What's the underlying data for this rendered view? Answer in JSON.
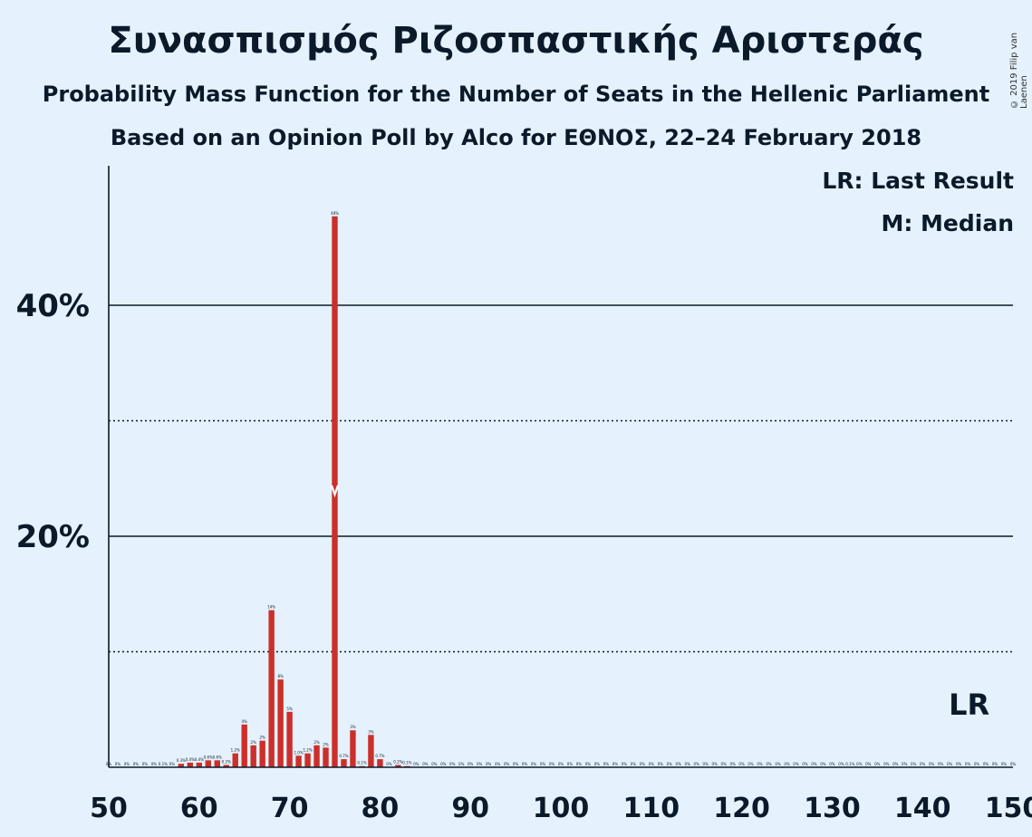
{
  "header": {
    "title": "Συνασπισμός Ριζοσπαστικής Αριστεράς",
    "subtitle1": "Probability Mass Function for the Number of Seats in the Hellenic Parliament",
    "subtitle2": "Based on an Opinion Poll by Alco for ΕΘΝΟΣ, 22–24 February 2018",
    "copyright": "© 2019 Filip van Laenen"
  },
  "legend": {
    "last_result": "LR: Last Result",
    "median": "M: Median"
  },
  "colors": {
    "background": "#e5f1fc",
    "bar": "#cc2f2a",
    "text": "#0b1a2a"
  },
  "chart_data": {
    "type": "bar",
    "title": "Συνασπισμός Ριζοσπαστικής Αριστεράς",
    "xlabel": "",
    "ylabel": "",
    "xlim": [
      50,
      150
    ],
    "ylim": [
      0,
      52
    ],
    "x_ticks": [
      50,
      60,
      70,
      80,
      90,
      100,
      110,
      120,
      130,
      140,
      150
    ],
    "y_ticks": [
      {
        "value": 20,
        "label": "20%",
        "style": "solid"
      },
      {
        "value": 40,
        "label": "40%",
        "style": "solid"
      }
    ],
    "y_minor_gridlines": [
      10,
      30
    ],
    "median": 75,
    "last_result": 145,
    "last_result_label": "LR",
    "bars": [
      {
        "x": 58,
        "value": 0.3,
        "label": "0.3%"
      },
      {
        "x": 59,
        "value": 0.4,
        "label": "0.4%"
      },
      {
        "x": 60,
        "value": 0.4,
        "label": "0.4%"
      },
      {
        "x": 61,
        "value": 0.6,
        "label": "0.6%"
      },
      {
        "x": 62,
        "value": 0.6,
        "label": "0.6%"
      },
      {
        "x": 63,
        "value": 0.2,
        "label": "0.2%"
      },
      {
        "x": 64,
        "value": 1.2,
        "label": "1.2%"
      },
      {
        "x": 65,
        "value": 3.7,
        "label": "4%"
      },
      {
        "x": 66,
        "value": 1.9,
        "label": "2%"
      },
      {
        "x": 67,
        "value": 2.3,
        "label": "2%"
      },
      {
        "x": 68,
        "value": 13.6,
        "label": "14%"
      },
      {
        "x": 69,
        "value": 7.6,
        "label": "8%"
      },
      {
        "x": 70,
        "value": 4.8,
        "label": "5%"
      },
      {
        "x": 71,
        "value": 1.0,
        "label": "1.0%"
      },
      {
        "x": 72,
        "value": 1.2,
        "label": "1.2%"
      },
      {
        "x": 73,
        "value": 1.9,
        "label": "2%"
      },
      {
        "x": 74,
        "value": 1.7,
        "label": "2%"
      },
      {
        "x": 75,
        "value": 47.7,
        "label": "48%"
      },
      {
        "x": 76,
        "value": 0.7,
        "label": "0.7%"
      },
      {
        "x": 77,
        "value": 3.2,
        "label": "3%"
      },
      {
        "x": 78,
        "value": 0.1,
        "label": "0.1%"
      },
      {
        "x": 79,
        "value": 2.8,
        "label": "3%"
      },
      {
        "x": 80,
        "value": 0.7,
        "label": "0.7%"
      },
      {
        "x": 82,
        "value": 0.2,
        "label": "0.2%"
      },
      {
        "x": 83,
        "value": 0.1,
        "label": "0.1%"
      }
    ],
    "zero_labels": [
      {
        "x": 50,
        "label": "0%"
      },
      {
        "x": 51,
        "label": "0%"
      },
      {
        "x": 52,
        "label": "0%"
      },
      {
        "x": 53,
        "label": "0%"
      },
      {
        "x": 54,
        "label": "0%"
      },
      {
        "x": 55,
        "label": "0%"
      },
      {
        "x": 56,
        "label": "0.1%"
      },
      {
        "x": 57,
        "label": "0%"
      },
      {
        "x": 81,
        "label": "0%"
      },
      {
        "x": 84,
        "label": "0%"
      },
      {
        "x": 85,
        "label": "0%"
      },
      {
        "x": 86,
        "label": "0%"
      },
      {
        "x": 87,
        "label": "0%"
      },
      {
        "x": 88,
        "label": "0%"
      },
      {
        "x": 89,
        "label": "0%"
      },
      {
        "x": 90,
        "label": "0%"
      },
      {
        "x": 91,
        "label": "0%"
      },
      {
        "x": 92,
        "label": "0%"
      },
      {
        "x": 93,
        "label": "0%"
      },
      {
        "x": 94,
        "label": "0%"
      },
      {
        "x": 95,
        "label": "0%"
      },
      {
        "x": 96,
        "label": "0%"
      },
      {
        "x": 97,
        "label": "0%"
      },
      {
        "x": 98,
        "label": "0%"
      },
      {
        "x": 99,
        "label": "0%"
      },
      {
        "x": 100,
        "label": "0%"
      },
      {
        "x": 101,
        "label": "0%"
      },
      {
        "x": 102,
        "label": "0%"
      },
      {
        "x": 103,
        "label": "0%"
      },
      {
        "x": 104,
        "label": "0%"
      },
      {
        "x": 105,
        "label": "0%"
      },
      {
        "x": 106,
        "label": "0%"
      },
      {
        "x": 107,
        "label": "0%"
      },
      {
        "x": 108,
        "label": "0%"
      },
      {
        "x": 109,
        "label": "0%"
      },
      {
        "x": 110,
        "label": "0%"
      },
      {
        "x": 111,
        "label": "0%"
      },
      {
        "x": 112,
        "label": "0%"
      },
      {
        "x": 113,
        "label": "0%"
      },
      {
        "x": 114,
        "label": "0%"
      },
      {
        "x": 115,
        "label": "0%"
      },
      {
        "x": 116,
        "label": "0%"
      },
      {
        "x": 117,
        "label": "0%"
      },
      {
        "x": 118,
        "label": "0%"
      },
      {
        "x": 119,
        "label": "0%"
      },
      {
        "x": 120,
        "label": "0%"
      },
      {
        "x": 121,
        "label": "0%"
      },
      {
        "x": 122,
        "label": "0%"
      },
      {
        "x": 123,
        "label": "0%"
      },
      {
        "x": 124,
        "label": "0%"
      },
      {
        "x": 125,
        "label": "0%"
      },
      {
        "x": 126,
        "label": "0%"
      },
      {
        "x": 127,
        "label": "0%"
      },
      {
        "x": 128,
        "label": "0%"
      },
      {
        "x": 129,
        "label": "0%"
      },
      {
        "x": 130,
        "label": "0%"
      },
      {
        "x": 131,
        "label": "0%"
      },
      {
        "x": 132,
        "label": "0.1%"
      },
      {
        "x": 133,
        "label": "0%"
      },
      {
        "x": 134,
        "label": "0%"
      },
      {
        "x": 135,
        "label": "0%"
      },
      {
        "x": 136,
        "label": "0%"
      },
      {
        "x": 137,
        "label": "0%"
      },
      {
        "x": 138,
        "label": "0%"
      },
      {
        "x": 139,
        "label": "0%"
      },
      {
        "x": 140,
        "label": "0%"
      },
      {
        "x": 141,
        "label": "0%"
      },
      {
        "x": 142,
        "label": "0%"
      },
      {
        "x": 143,
        "label": "0%"
      },
      {
        "x": 144,
        "label": "0%"
      },
      {
        "x": 145,
        "label": "0%"
      },
      {
        "x": 146,
        "label": "0%"
      },
      {
        "x": 147,
        "label": "0%"
      },
      {
        "x": 148,
        "label": "0%"
      },
      {
        "x": 149,
        "label": "0%"
      },
      {
        "x": 150,
        "label": "0%"
      }
    ]
  }
}
